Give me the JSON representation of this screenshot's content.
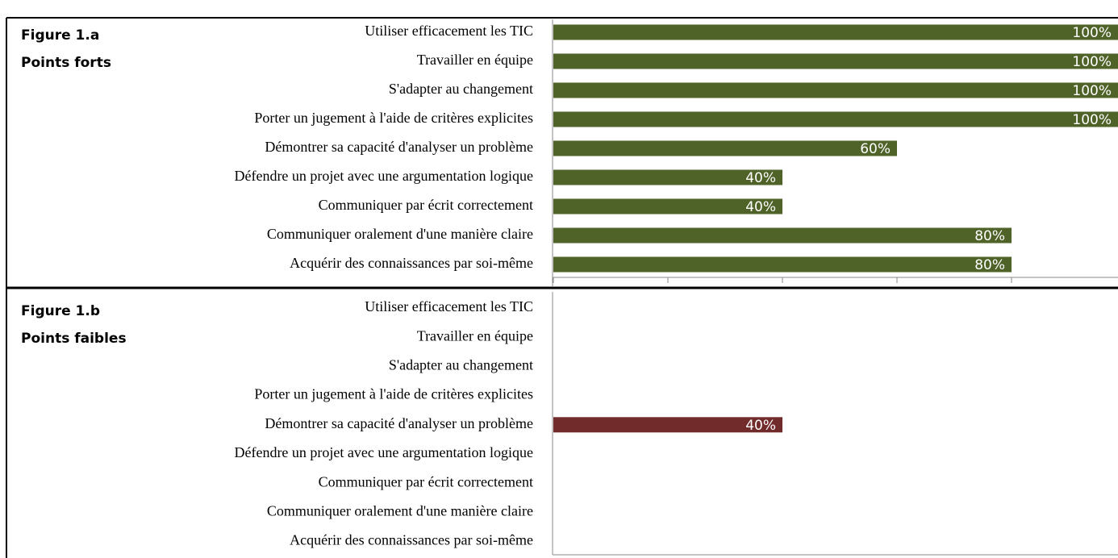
{
  "chart_data": [
    {
      "type": "barh",
      "title": "Figure 1.a",
      "subtitle": "Points forts",
      "categories": [
        "Utiliser efficacement les TIC",
        "Travailler en équipe",
        "S'adapter au changement",
        "Porter un jugement à l'aide de critères explicites",
        "Démontrer sa capacité d'analyser un problème",
        "Défendre un projet avec une argumentation logique",
        "Communiquer par écrit correctement",
        "Communiquer oralement d'une manière claire",
        "Acquérir des connaissances par soi-même"
      ],
      "values": [
        100,
        100,
        100,
        100,
        60,
        40,
        40,
        80,
        80
      ],
      "value_labels": [
        "100%",
        "100%",
        "100%",
        "100%",
        "60%",
        "40%",
        "40%",
        "80%",
        "80%"
      ],
      "color": "#4f6228",
      "xlim": [
        0,
        100
      ],
      "xticks": [
        0,
        20,
        40,
        60,
        80,
        100
      ]
    },
    {
      "type": "barh",
      "title": "Figure 1.b",
      "subtitle": "Points faibles",
      "categories": [
        "Utiliser efficacement les TIC",
        "Travailler en équipe",
        "S'adapter au changement",
        "Porter un jugement à l'aide de critères explicites",
        "Démontrer sa capacité d'analyser un problème",
        "Défendre un projet avec une argumentation logique",
        "Communiquer par écrit correctement",
        "Communiquer oralement d'une manière claire",
        "Acquérir des connaissances par soi-même"
      ],
      "values": [
        0,
        0,
        0,
        0,
        40,
        0,
        0,
        0,
        0
      ],
      "value_labels": [
        null,
        null,
        null,
        null,
        "40%",
        null,
        null,
        null,
        null
      ],
      "color": "#722b2b",
      "xlim": [
        0,
        100
      ]
    }
  ]
}
